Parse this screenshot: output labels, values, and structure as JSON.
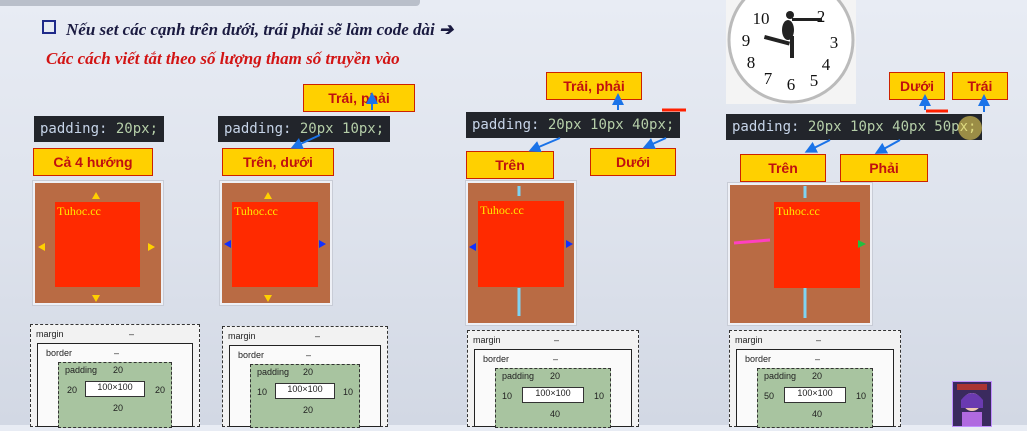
{
  "heading": {
    "line1": "Nếu set các cạnh trên dưới, trái phải sẽ làm code dài",
    "arrow": "➔",
    "line2": "Các cách viết tắt theo số lượng tham số truyền vào"
  },
  "panels": [
    {
      "code_prop": "padding:",
      "code_vals": " 20px;",
      "label_below": "Cả 4 hướng",
      "label_above": ""
    },
    {
      "code_prop": "padding:",
      "code_vals": " 20px 10px;",
      "label_below": "Trên, dưới",
      "label_above": "Trái, phải"
    },
    {
      "code_prop": "padding:",
      "code_vals": " 20px 10px 40px;",
      "label_below": "Trên",
      "label_below_2": "Dưới",
      "label_above": "Trái, phải"
    },
    {
      "code_prop": "padding:",
      "code_vals": " 20px 10px 40px 50px;",
      "label_below": "Trên",
      "label_below_2": "Phải",
      "label_above": "Dưới",
      "label_above_2": "Trái"
    }
  ],
  "watermark": "Tuhoc.cc",
  "boxmodels": [
    {
      "margin": "margin",
      "border": "border",
      "padding": "padding",
      "dash": "–",
      "top": "20",
      "right": "20",
      "bottom": "20",
      "left": "20",
      "content": "100×100"
    },
    {
      "margin": "margin",
      "border": "border",
      "padding": "padding",
      "dash": "–",
      "top": "20",
      "right": "10",
      "bottom": "20",
      "left": "10",
      "content": "100×100"
    },
    {
      "margin": "margin",
      "border": "border",
      "padding": "padding",
      "dash": "–",
      "top": "20",
      "right": "10",
      "bottom": "40",
      "left": "10",
      "content": "100×100"
    },
    {
      "margin": "margin",
      "border": "border",
      "padding": "padding",
      "dash": "–",
      "top": "20",
      "right": "10",
      "bottom": "40",
      "left": "50",
      "content": "100×100"
    }
  ],
  "colors": {
    "tag_bg": "#ffd000",
    "tag_text": "#c01010",
    "demo_bg": "#b96b44",
    "content": "#ff2a00",
    "arrow": "#1a73e8"
  },
  "icons": {
    "clock": "clock-icon",
    "avatar": "avatar-icon"
  }
}
